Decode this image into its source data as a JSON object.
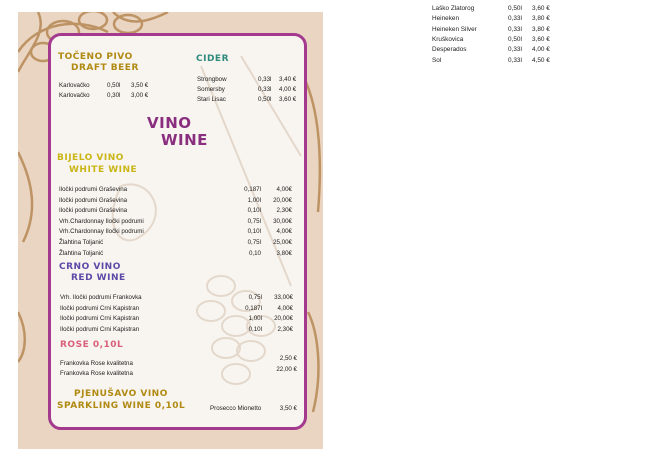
{
  "menu": {
    "draft_beer": {
      "title_hr": "TOČENO PIVO",
      "title_en": "DRAFT BEER",
      "items": [
        {
          "name": "Karlovačko",
          "vol": "0,50l",
          "price": "3,50 €"
        },
        {
          "name": "Karlovačko",
          "vol": "0,30l",
          "price": "3,00 €"
        }
      ]
    },
    "cider": {
      "title": "CIDER",
      "items": [
        {
          "name": "Strongbow",
          "vol": "0,33l",
          "price": "3,40 €"
        },
        {
          "name": "Somersby",
          "vol": "0,33l",
          "price": "4,00 €"
        },
        {
          "name": "Stari Lisac",
          "vol": "0,50l",
          "price": "3,60 €"
        }
      ]
    },
    "wine": {
      "title_hr": "VINO",
      "title_en": "WINE"
    },
    "white_wine": {
      "title_hr": "BIJELO VINO",
      "title_en": "WHITE WINE",
      "items": [
        {
          "name": "Iločki podrumi Graševina",
          "vol": "0,187l",
          "price": "4,00€"
        },
        {
          "name": "Iločki podrumi Graševina",
          "vol": "1,00l",
          "price": "20,00€"
        },
        {
          "name": "Iločki podrumi Graševina",
          "vol": "0,10l",
          "price": "2,30€"
        },
        {
          "name": "Vrh.Chardonnay Iločki podrumi",
          "vol": "0,75l",
          "price": "30,00€"
        },
        {
          "name": "Vrh.Chardonnay Iločki podrumi",
          "vol": "0,10l",
          "price": "4,00€"
        },
        {
          "name": "Žlahtina Toljanić",
          "vol": "0,75l",
          "price": "25,00€"
        },
        {
          "name": "Žlahtina Toljanić",
          "vol": "0,10",
          "price": "3,80€"
        }
      ]
    },
    "red_wine": {
      "title_hr": "CRNO VINO",
      "title_en": "RED WINE",
      "items": [
        {
          "name": "Vrh. Iločki podrumi Frankovka",
          "vol": "0,75l",
          "price": "33,00€"
        },
        {
          "name": "Iločki podrumi Crni Kapistran",
          "vol": "0,187l",
          "price": "4,00€"
        },
        {
          "name": "Iločki podrumi Crni Kapistran",
          "vol": "1,00l",
          "price": "20,00€"
        },
        {
          "name": "Iločki podrumi Crni Kapistran",
          "vol": "0,10l",
          "price": "2,30€"
        }
      ]
    },
    "rose": {
      "title": "ROSE 0,10L",
      "items": [
        {
          "name": "Frankovka Rose kvalitetna",
          "price": "2,50 €"
        },
        {
          "name": "Frankovka Rose kvalitetna",
          "price": "22,00 €"
        }
      ]
    },
    "sparkling": {
      "title_hr": "PJENUŠAVO VINO",
      "title_en": "SPARKLING WINE 0,10L",
      "item": {
        "name": "Prosecco Mionetto",
        "price": "3,50 €"
      }
    }
  },
  "bottled_beer": [
    {
      "name": "Laško Zlatorog",
      "vol": "0,50l",
      "price": "3,60 €"
    },
    {
      "name": "Heineken",
      "vol": "0,33l",
      "price": "3,80 €"
    },
    {
      "name": "Heineken Silver",
      "vol": "0,33l",
      "price": "3,80 €"
    },
    {
      "name": "Kruškovica",
      "vol": "0,50l",
      "price": "3,60 €"
    },
    {
      "name": "Desperados",
      "vol": "0,33l",
      "price": "4,00 €"
    },
    {
      "name": "Sol",
      "vol": "0,33l",
      "price": "4,50 €"
    }
  ],
  "colors": {
    "border": "#a33a8e",
    "gold": "#b08a12",
    "teal": "#2f8a7e",
    "purple": "#8a2f7f",
    "yellow": "#c9b616",
    "violet": "#5b4aa8",
    "pink": "#d9607a",
    "background": "#e9d5c2"
  }
}
